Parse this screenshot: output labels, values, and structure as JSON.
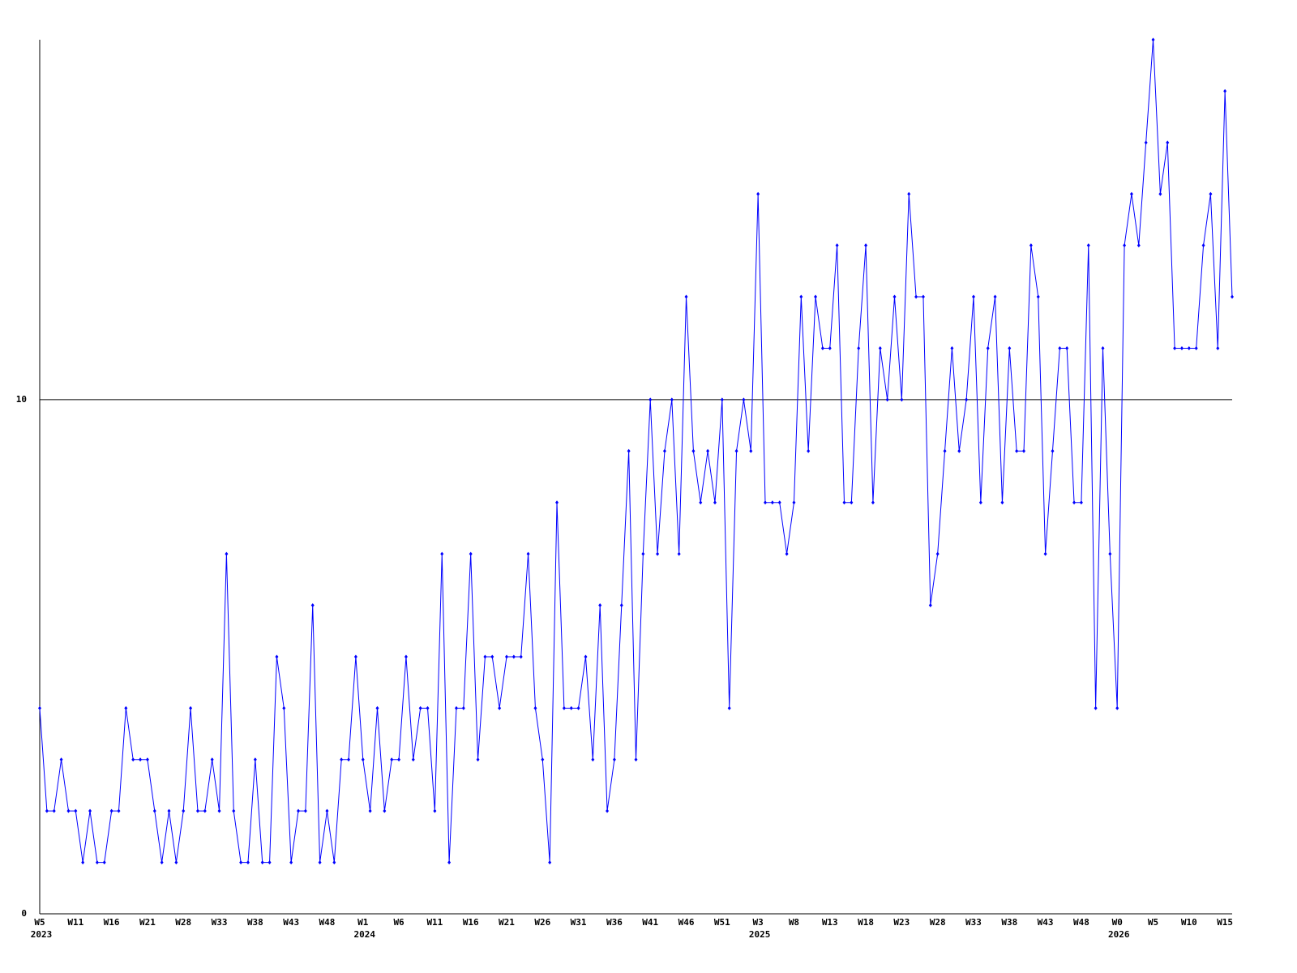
{
  "chart_data": {
    "type": "line",
    "color": "#0000ff",
    "categories": [
      "W5",
      null,
      null,
      null,
      null,
      "W11",
      null,
      null,
      null,
      null,
      "W16",
      null,
      null,
      null,
      null,
      "W21",
      null,
      null,
      null,
      null,
      "W28",
      null,
      null,
      null,
      null,
      "W33",
      null,
      null,
      null,
      null,
      "W38",
      null,
      null,
      null,
      null,
      "W43",
      null,
      null,
      null,
      null,
      "W48",
      null,
      null,
      null,
      null,
      "W1",
      null,
      null,
      null,
      null,
      "W6",
      null,
      null,
      null,
      null,
      "W11",
      null,
      null,
      null,
      null,
      "W16",
      null,
      null,
      null,
      null,
      "W21",
      null,
      null,
      null,
      null,
      "W26",
      null,
      null,
      null,
      null,
      "W31",
      null,
      null,
      null,
      null,
      "W36",
      null,
      null,
      null,
      null,
      "W41",
      null,
      null,
      null,
      null,
      "W46",
      null,
      null,
      null,
      null,
      "W51",
      null,
      null,
      null,
      null,
      "W3",
      null,
      null,
      null,
      null,
      "W8",
      null,
      null,
      null,
      null,
      "W13",
      null,
      null,
      null,
      null,
      "W18",
      null,
      null,
      null,
      null,
      "W23",
      null,
      null,
      null,
      null,
      "W28",
      null,
      null,
      null,
      null,
      "W33",
      null,
      null,
      null,
      null,
      "W38",
      null,
      null,
      null,
      null,
      "W43",
      null,
      null,
      null,
      null,
      "W48",
      null,
      null,
      null,
      null,
      "W0",
      null,
      null,
      null,
      null,
      "W5",
      null,
      null,
      null,
      null,
      "W10",
      null,
      null,
      null,
      null,
      "W15",
      null
    ],
    "category_years": [
      "2023",
      null,
      null,
      null,
      null,
      null,
      null,
      null,
      null,
      null,
      null,
      null,
      null,
      null,
      null,
      null,
      null,
      null,
      null,
      null,
      null,
      null,
      null,
      null,
      null,
      null,
      null,
      null,
      null,
      null,
      null,
      null,
      null,
      null,
      null,
      null,
      null,
      null,
      null,
      null,
      null,
      null,
      null,
      null,
      null,
      "2024",
      null,
      null,
      null,
      null,
      null,
      null,
      null,
      null,
      null,
      null,
      null,
      null,
      null,
      null,
      null,
      null,
      null,
      null,
      null,
      null,
      null,
      null,
      null,
      null,
      null,
      null,
      null,
      null,
      null,
      null,
      null,
      null,
      null,
      null,
      null,
      null,
      null,
      null,
      null,
      null,
      null,
      null,
      null,
      null,
      null,
      null,
      null,
      null,
      null,
      null,
      null,
      null,
      null,
      null,
      "2025",
      null,
      null,
      null,
      null,
      null,
      null,
      null,
      null,
      null,
      null,
      null,
      null,
      null,
      null,
      null,
      null,
      null,
      null,
      null,
      null,
      null,
      null,
      null,
      null,
      null,
      null,
      null,
      null,
      null,
      null,
      null,
      null,
      null,
      null,
      null,
      null,
      null,
      null,
      null,
      null,
      null,
      null,
      null,
      null,
      null,
      null,
      null,
      null,
      null,
      "2026",
      null,
      null,
      null,
      null,
      null,
      null,
      null,
      null,
      null,
      null,
      null,
      null,
      null,
      null,
      null,
      null
    ],
    "values": [
      4,
      2,
      2,
      3,
      2,
      2,
      1,
      2,
      1,
      1,
      2,
      2,
      4,
      3,
      3,
      3,
      2,
      1,
      2,
      1,
      2,
      4,
      2,
      2,
      3,
      2,
      7,
      2,
      1,
      1,
      3,
      1,
      1,
      5,
      4,
      1,
      2,
      2,
      6,
      1,
      2,
      1,
      3,
      3,
      5,
      3,
      2,
      4,
      2,
      3,
      3,
      5,
      3,
      4,
      4,
      2,
      7,
      1,
      4,
      4,
      7,
      3,
      5,
      5,
      4,
      5,
      5,
      5,
      7,
      4,
      3,
      1,
      8,
      4,
      4,
      4,
      5,
      3,
      6,
      2,
      3,
      6,
      9,
      3,
      7,
      10,
      7,
      9,
      10,
      7,
      12,
      9,
      8,
      9,
      8,
      10,
      4,
      9,
      10,
      9,
      14,
      8,
      8,
      8,
      7,
      8,
      12,
      9,
      12,
      11,
      11,
      13,
      8,
      8,
      11,
      13,
      8,
      11,
      10,
      12,
      10,
      14,
      12,
      12,
      6,
      7,
      9,
      11,
      9,
      10,
      12,
      8,
      11,
      12,
      8,
      11,
      9,
      9,
      13,
      12,
      7,
      9,
      11,
      11,
      8,
      8,
      13,
      4,
      11,
      7,
      4,
      13,
      14,
      13,
      15,
      17,
      14,
      15,
      11,
      11,
      11,
      11,
      13,
      14,
      11,
      16,
      12
    ],
    "ylim": [
      0,
      17
    ],
    "yticks": [
      0,
      10
    ],
    "grid": true
  }
}
